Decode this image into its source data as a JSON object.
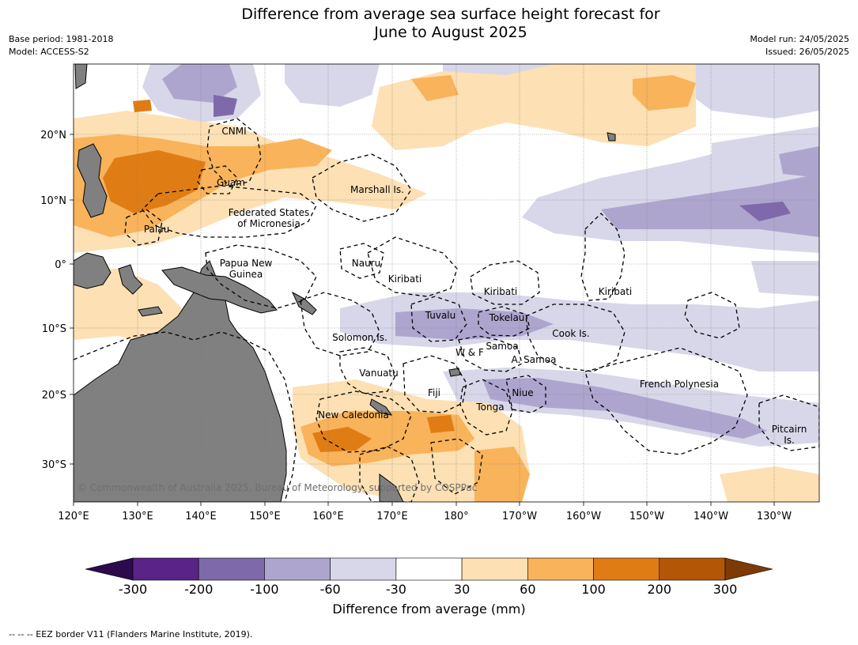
{
  "header": {
    "title_line1": "Difference from average sea surface height forecast for",
    "title_line2": "June to August 2025",
    "base_period": "Base period: 1981-2018",
    "model": "Model: ACCESS-S2",
    "model_run": "Model run: 24/05/2025",
    "issued": "Issued: 26/05/2025"
  },
  "map": {
    "copyright": "© Commonwealth of Australia 2025, Bureau of Meteorology, supported by COSPPac",
    "lon_ticks": [
      "120°E",
      "130°E",
      "140°E",
      "150°E",
      "160°E",
      "170°E",
      "180°",
      "170°W",
      "160°W",
      "150°W",
      "140°W",
      "130°W"
    ],
    "lat_ticks": [
      "20°N",
      "10°N",
      "0°",
      "10°S",
      "20°S",
      "30°S"
    ],
    "region_labels": [
      {
        "name": "cnmi",
        "lines": [
          "CNMI"
        ]
      },
      {
        "name": "guam",
        "lines": [
          "Guam"
        ]
      },
      {
        "name": "marshall-islands",
        "lines": [
          "Marshall Is."
        ]
      },
      {
        "name": "fsm",
        "lines": [
          "Federated States",
          "of Micronesia"
        ]
      },
      {
        "name": "palau",
        "lines": [
          "Palau"
        ]
      },
      {
        "name": "png",
        "lines": [
          "Papua New",
          "Guinea"
        ]
      },
      {
        "name": "nauru",
        "lines": [
          "Nauru"
        ]
      },
      {
        "name": "kiribati-west",
        "lines": [
          "Kiribati"
        ]
      },
      {
        "name": "kiribati-central",
        "lines": [
          "Kiribati"
        ]
      },
      {
        "name": "kiribati-east",
        "lines": [
          "Kiribati"
        ]
      },
      {
        "name": "tuvalu",
        "lines": [
          "Tuvalu"
        ]
      },
      {
        "name": "tokelau",
        "lines": [
          "Tokelau"
        ]
      },
      {
        "name": "cook-islands",
        "lines": [
          "Cook Is."
        ]
      },
      {
        "name": "solomon-islands",
        "lines": [
          "Solomon Is."
        ]
      },
      {
        "name": "samoa",
        "lines": [
          "Samoa"
        ]
      },
      {
        "name": "wallis-futuna",
        "lines": [
          "W & F"
        ]
      },
      {
        "name": "american-samoa",
        "lines": [
          "A. Samoa"
        ]
      },
      {
        "name": "vanuatu",
        "lines": [
          "Vanuatu"
        ]
      },
      {
        "name": "fiji",
        "lines": [
          "Fiji"
        ]
      },
      {
        "name": "niue",
        "lines": [
          "Niue"
        ]
      },
      {
        "name": "tonga",
        "lines": [
          "Tonga"
        ]
      },
      {
        "name": "french-polynesia",
        "lines": [
          "French Polynesia"
        ]
      },
      {
        "name": "new-caledonia",
        "lines": [
          "New Caledonia"
        ]
      },
      {
        "name": "pitcairn",
        "lines": [
          "Pitcairn",
          "Is."
        ]
      }
    ]
  },
  "colorbar": {
    "label": "Difference from average (mm)",
    "ticks": [
      "-300",
      "-200",
      "-100",
      "-60",
      "-30",
      "30",
      "60",
      "100",
      "200",
      "300"
    ],
    "colors": {
      "below_min": "#2d0a4e",
      "bins": [
        "#5a2387",
        "#7e6aaa",
        "#aea5cf",
        "#d7d7e9",
        "#ffffff",
        "#fde0b3",
        "#f8b35b",
        "#df7d14",
        "#b35707"
      ],
      "above_max": "#7d3a05"
    }
  },
  "footnote": "--  --  -- EEZ border V11 (Flanders Marine Institute, 2019).",
  "land_color": "#808080"
}
